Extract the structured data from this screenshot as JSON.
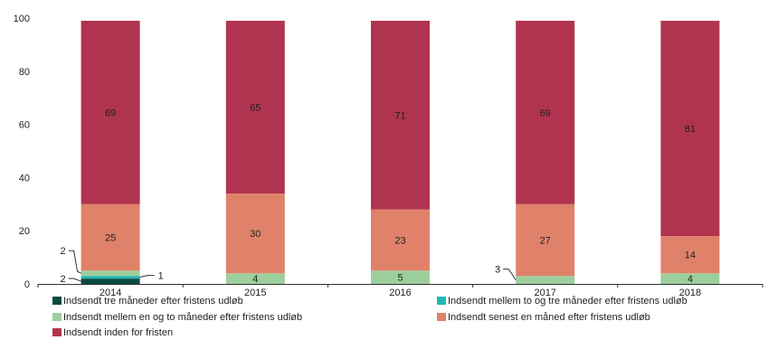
{
  "chart_data": {
    "type": "bar",
    "stacked": true,
    "categories": [
      "2014",
      "2015",
      "2016",
      "2017",
      "2018"
    ],
    "ylim": [
      0,
      100
    ],
    "yticks": [
      0,
      20,
      40,
      60,
      80,
      100
    ],
    "grid": false,
    "legend_position": "bottom",
    "series": [
      {
        "name": "Indsendt tre måneder efter fristens udløb",
        "color": "#0b4a40",
        "values": [
          2,
          0,
          0,
          0,
          0
        ],
        "labels": [
          "2",
          "",
          "",
          "",
          ""
        ]
      },
      {
        "name": "Indsendt mellem to og tre måneder efter fristens udløb",
        "color": "#22b8b0",
        "values": [
          1,
          0,
          0,
          0,
          0
        ],
        "labels": [
          "1",
          "",
          "",
          "",
          ""
        ]
      },
      {
        "name": "Indsendt mellem en og to måneder efter fristens udløb",
        "color": "#9dcf9d",
        "values": [
          2,
          4,
          5,
          3,
          4
        ],
        "labels": [
          "2",
          "4",
          "5",
          "3",
          "4"
        ]
      },
      {
        "name": "Indsendt senest en måned efter fristens udløb",
        "color": "#e0826a",
        "values": [
          25,
          30,
          23,
          27,
          14
        ],
        "labels": [
          "25",
          "30",
          "23",
          "27",
          "14"
        ]
      },
      {
        "name": "Indsendt inden for fristen",
        "color": "#b0344f",
        "values": [
          69,
          65,
          71,
          69,
          81
        ],
        "labels": [
          "69",
          "65",
          "71",
          "69",
          "81"
        ]
      }
    ]
  }
}
